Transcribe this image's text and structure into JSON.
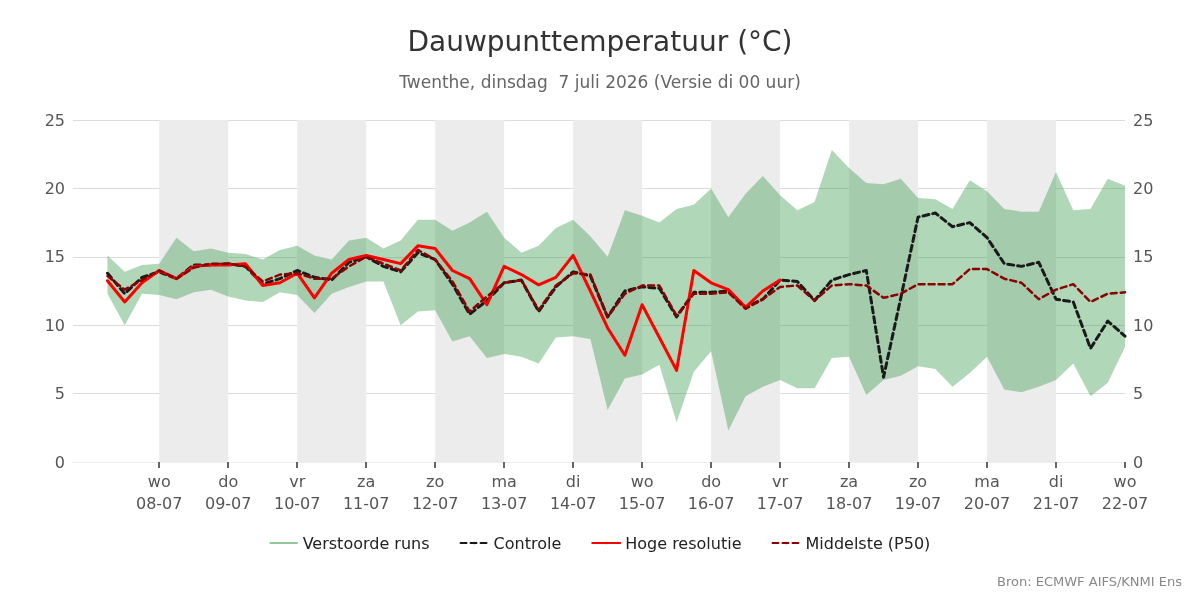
{
  "chart_data": {
    "type": "line",
    "title": "Dauwpunttemperatuur (°C)",
    "subtitle": "Twenthe, dinsdag  7 juli 2026 (Versie di 00 uur)",
    "annotations": [
      "Bron: ECMWF AIFS/KNMI Ens"
    ],
    "x": [
      "2026-07-07T06:00",
      "2026-07-07T12:00",
      "2026-07-07T18:00",
      "2026-07-08T00:00",
      "2026-07-08T06:00",
      "2026-07-08T12:00",
      "2026-07-08T18:00",
      "2026-07-09T00:00",
      "2026-07-09T06:00",
      "2026-07-09T12:00",
      "2026-07-09T18:00",
      "2026-07-10T00:00",
      "2026-07-10T06:00",
      "2026-07-10T12:00",
      "2026-07-10T18:00",
      "2026-07-11T00:00",
      "2026-07-11T06:00",
      "2026-07-11T12:00",
      "2026-07-11T18:00",
      "2026-07-12T00:00",
      "2026-07-12T06:00",
      "2026-07-12T12:00",
      "2026-07-12T18:00",
      "2026-07-13T00:00",
      "2026-07-13T06:00",
      "2026-07-13T12:00",
      "2026-07-13T18:00",
      "2026-07-14T00:00",
      "2026-07-14T06:00",
      "2026-07-14T12:00",
      "2026-07-14T18:00",
      "2026-07-15T00:00",
      "2026-07-15T06:00",
      "2026-07-15T12:00",
      "2026-07-15T18:00",
      "2026-07-16T00:00",
      "2026-07-16T06:00",
      "2026-07-16T12:00",
      "2026-07-16T18:00",
      "2026-07-17T00:00",
      "2026-07-17T06:00",
      "2026-07-17T12:00",
      "2026-07-17T18:00",
      "2026-07-18T00:00",
      "2026-07-18T06:00",
      "2026-07-18T12:00",
      "2026-07-18T18:00",
      "2026-07-19T00:00",
      "2026-07-19T06:00",
      "2026-07-19T12:00",
      "2026-07-19T18:00",
      "2026-07-20T00:00",
      "2026-07-20T06:00",
      "2026-07-20T12:00",
      "2026-07-20T18:00",
      "2026-07-21T00:00",
      "2026-07-21T06:00",
      "2026-07-21T12:00",
      "2026-07-21T18:00",
      "2026-07-22T00:00"
    ],
    "series": [
      {
        "name": "Verstoorde runs",
        "type": "area",
        "color": "#3a9a4a",
        "values": [
          null,
          null,
          null,
          null,
          null,
          null,
          null,
          null,
          null,
          null,
          null,
          null,
          null,
          null,
          null,
          null,
          null,
          null,
          null,
          null,
          null,
          null,
          null,
          null,
          null,
          null,
          null,
          null,
          null,
          null,
          null,
          null,
          null,
          null,
          null,
          null,
          null,
          null,
          null,
          null,
          null,
          null,
          null,
          null,
          null,
          null,
          null,
          null,
          null,
          null,
          null,
          null,
          null,
          null,
          null,
          null,
          null,
          null,
          null,
          null
        ],
        "lower": [
          12.3,
          10.0,
          12.3,
          12.2,
          11.9,
          12.4,
          12.6,
          12.1,
          11.8,
          11.7,
          12.4,
          12.2,
          10.9,
          12.3,
          12.8,
          13.2,
          13.2,
          10.0,
          11.0,
          11.1,
          8.8,
          9.2,
          7.6,
          7.9,
          7.7,
          7.2,
          9.1,
          9.2,
          9.0,
          3.8,
          6.1,
          6.4,
          7.1,
          2.9,
          6.6,
          8.1,
          2.3,
          4.8,
          5.5,
          6.0,
          5.4,
          5.4,
          7.6,
          7.7,
          4.9,
          6.0,
          6.3,
          7.0,
          6.8,
          5.5,
          6.5,
          7.7,
          5.3,
          5.1,
          5.5,
          6.0,
          7.2,
          4.8,
          5.8,
          8.4
        ],
        "upper": [
          15.1,
          13.9,
          14.4,
          14.5,
          16.4,
          15.4,
          15.6,
          15.3,
          15.2,
          14.8,
          15.5,
          15.8,
          15.1,
          14.8,
          16.2,
          16.4,
          15.6,
          16.2,
          17.7,
          17.7,
          16.9,
          17.5,
          18.3,
          16.4,
          15.3,
          15.8,
          17.1,
          17.7,
          16.5,
          15.0,
          18.4,
          18.0,
          17.5,
          18.5,
          18.8,
          20.0,
          17.9,
          19.6,
          20.9,
          19.5,
          18.4,
          19.0,
          22.8,
          21.5,
          20.4,
          20.3,
          20.7,
          19.3,
          19.2,
          18.5,
          20.6,
          19.8,
          18.5,
          18.3,
          18.3,
          21.2,
          18.4,
          18.5,
          20.7,
          20.2
        ]
      },
      {
        "name": "Controle",
        "color": "#1a1a1a",
        "line_style": "dashed",
        "values": [
          13.8,
          12.3,
          13.5,
          13.9,
          13.4,
          14.4,
          14.4,
          14.5,
          14.3,
          13.0,
          13.4,
          14.0,
          13.5,
          13.3,
          14.6,
          15.0,
          14.3,
          13.9,
          15.3,
          14.8,
          13.0,
          10.8,
          11.8,
          13.1,
          13.3,
          11.0,
          12.8,
          13.9,
          13.6,
          10.6,
          12.5,
          12.8,
          12.7,
          10.6,
          12.4,
          12.4,
          12.5,
          11.3,
          11.9,
          13.3,
          13.2,
          11.8,
          13.3,
          13.7,
          14.0,
          6.2,
          12.0,
          17.9,
          18.2,
          17.2,
          17.5,
          16.4,
          14.5,
          14.3,
          14.6,
          11.9,
          11.7,
          8.3,
          10.3,
          9.2
        ]
      },
      {
        "name": "Hoge resolutie",
        "color": "#ff0000",
        "line_style": "solid",
        "values": [
          13.25,
          11.7,
          13.1,
          14.0,
          13.4,
          14.3,
          14.4,
          14.4,
          14.5,
          12.9,
          13.1,
          13.8,
          12.0,
          13.8,
          14.8,
          15.1,
          14.8,
          14.5,
          15.8,
          15.6,
          14.0,
          13.4,
          11.5,
          14.3,
          13.7,
          12.95,
          13.5,
          15.1,
          12.5,
          9.8,
          7.8,
          11.5,
          9.1,
          6.7,
          14.0,
          13.1,
          12.6,
          11.3,
          12.5,
          13.3,
          null,
          null,
          null,
          null,
          null,
          null,
          null,
          null,
          null,
          null,
          null,
          null,
          null,
          null,
          null,
          null,
          null,
          null,
          null,
          null
        ]
      },
      {
        "name": "Middelste (P50)",
        "color": "#8b0000",
        "line_style": "dashed",
        "values": [
          13.6,
          12.6,
          13.3,
          14.0,
          13.4,
          14.2,
          14.5,
          14.5,
          14.3,
          13.2,
          13.7,
          13.8,
          13.4,
          13.4,
          14.3,
          15.0,
          14.5,
          14.0,
          15.5,
          14.8,
          13.2,
          11.0,
          12.1,
          13.1,
          13.3,
          11.1,
          12.9,
          13.8,
          13.7,
          10.6,
          12.3,
          12.9,
          12.9,
          10.7,
          12.3,
          12.3,
          12.4,
          11.2,
          11.9,
          12.8,
          12.9,
          11.8,
          12.9,
          13.0,
          12.9,
          12.0,
          12.3,
          13.0,
          13.0,
          13.0,
          14.1,
          14.1,
          13.4,
          13.1,
          11.9,
          12.6,
          13.0,
          11.7,
          12.3,
          12.4
        ]
      }
    ],
    "xlim": [
      "2026-07-06T18:00",
      "2026-07-22T00:00"
    ],
    "xticks": [
      {
        "value": "2026-07-08T00:00",
        "label": "wo\n08-07"
      },
      {
        "value": "2026-07-09T00:00",
        "label": "do\n09-07"
      },
      {
        "value": "2026-07-10T00:00",
        "label": "vr\n10-07"
      },
      {
        "value": "2026-07-11T00:00",
        "label": "za\n11-07"
      },
      {
        "value": "2026-07-12T00:00",
        "label": "zo\n12-07"
      },
      {
        "value": "2026-07-13T00:00",
        "label": "ma\n13-07"
      },
      {
        "value": "2026-07-14T00:00",
        "label": "di\n14-07"
      },
      {
        "value": "2026-07-15T00:00",
        "label": "wo\n15-07"
      },
      {
        "value": "2026-07-16T00:00",
        "label": "do\n16-07"
      },
      {
        "value": "2026-07-17T00:00",
        "label": "vr\n17-07"
      },
      {
        "value": "2026-07-18T00:00",
        "label": "za\n18-07"
      },
      {
        "value": "2026-07-19T00:00",
        "label": "zo\n19-07"
      },
      {
        "value": "2026-07-20T00:00",
        "label": "ma\n20-07"
      },
      {
        "value": "2026-07-21T00:00",
        "label": "di\n21-07"
      },
      {
        "value": "2026-07-22T00:00",
        "label": "wo\n22-07"
      }
    ],
    "ylim": [
      0,
      25
    ],
    "yticks": [
      0,
      5,
      10,
      15,
      20,
      25
    ],
    "y2lim": [
      0,
      25
    ],
    "y2ticks": [
      0,
      5,
      10,
      15,
      20,
      25
    ],
    "bands": [
      {
        "axis": "x",
        "from": "2026-07-08T00:00",
        "to": "2026-07-09T00:00",
        "color": "#ececec"
      },
      {
        "axis": "x",
        "from": "2026-07-10T00:00",
        "to": "2026-07-11T00:00",
        "color": "#ececec"
      },
      {
        "axis": "x",
        "from": "2026-07-12T00:00",
        "to": "2026-07-13T00:00",
        "color": "#ececec"
      },
      {
        "axis": "x",
        "from": "2026-07-14T00:00",
        "to": "2026-07-15T00:00",
        "color": "#ececec"
      },
      {
        "axis": "x",
        "from": "2026-07-16T00:00",
        "to": "2026-07-17T00:00",
        "color": "#ececec"
      },
      {
        "axis": "x",
        "from": "2026-07-18T00:00",
        "to": "2026-07-19T00:00",
        "color": "#ececec"
      },
      {
        "axis": "x",
        "from": "2026-07-20T00:00",
        "to": "2026-07-21T00:00",
        "color": "#ececec"
      }
    ],
    "grid": "y",
    "legend": "bottom",
    "marker": "none"
  }
}
